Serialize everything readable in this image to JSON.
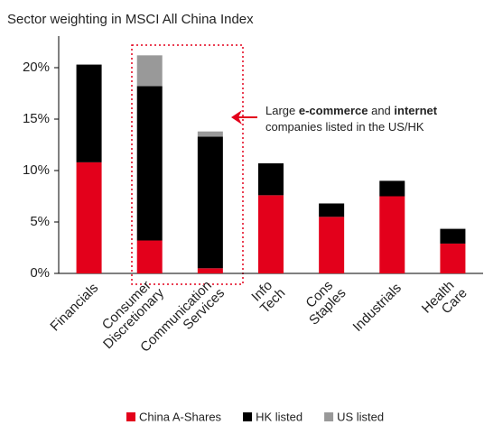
{
  "chart_data": {
    "type": "stacked_bar",
    "title": "Sector weighting in MSCI All China Index",
    "categories": [
      "Financials",
      "Consumer Discretionary",
      "Communication Services",
      "Info Tech",
      "Cons Staples",
      "Industrials",
      "Health Care"
    ],
    "series": [
      {
        "name": "China A-Shares",
        "color": "#e3001b",
        "values": [
          10.8,
          3.2,
          0.5,
          7.6,
          5.5,
          7.5,
          2.9
        ]
      },
      {
        "name": "HK listed",
        "color": "#000000",
        "values": [
          9.5,
          15.0,
          12.8,
          3.1,
          1.3,
          1.5,
          1.4
        ]
      },
      {
        "name": "US listed",
        "color": "#999999",
        "values": [
          0,
          3.0,
          0.5,
          0,
          0,
          0,
          0.1
        ]
      }
    ],
    "ylim": [
      0,
      23.5
    ],
    "yticks": [
      {
        "value": 0,
        "label": "0%"
      },
      {
        "value": 5,
        "label": "5%"
      },
      {
        "value": 10,
        "label": "10%"
      },
      {
        "value": 15,
        "label": "15%"
      },
      {
        "value": 20,
        "label": "20%"
      }
    ],
    "legend": "bottom",
    "annotation": [
      [
        {
          "text": "Large "
        },
        {
          "text": "e-commerce",
          "bold": true
        },
        {
          "text": " and "
        },
        {
          "text": "internet",
          "bold": true
        }
      ],
      [
        {
          "text": "companies listed in the US/HK"
        }
      ]
    ]
  }
}
